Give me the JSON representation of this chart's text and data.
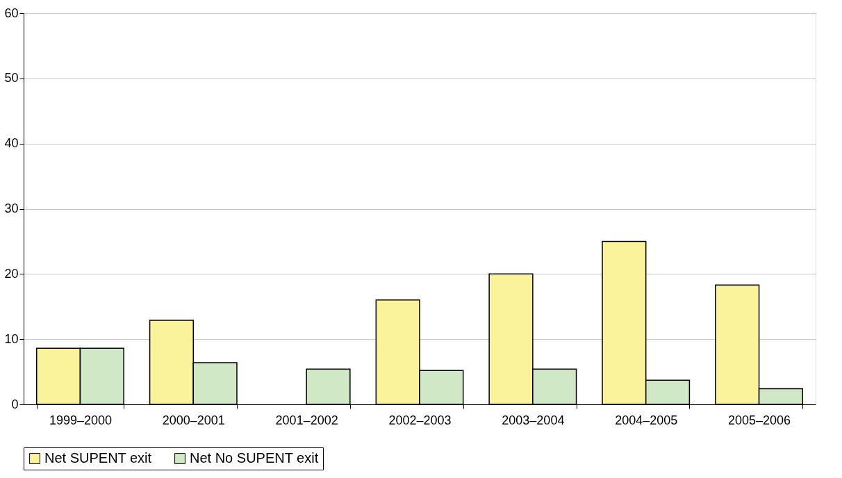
{
  "chart_data": {
    "type": "bar",
    "categories": [
      "1999–2000",
      "2000–2001",
      "2001–2002",
      "2002–2003",
      "2003–2004",
      "2004–2005",
      "2005–2006"
    ],
    "series": [
      {
        "name": "Net SUPENT exit",
        "color": "#faf39b",
        "values": [
          8.6,
          12.9,
          null,
          16.0,
          20.0,
          25.0,
          18.3
        ]
      },
      {
        "name": "Net No SUPENT exit",
        "color": "#d0e8c5",
        "values": [
          8.6,
          6.4,
          5.4,
          5.2,
          5.4,
          3.7,
          2.4
        ]
      }
    ],
    "ylim": [
      0,
      60
    ],
    "yticks": [
      0,
      10,
      20,
      30,
      40,
      50,
      60
    ],
    "grid": "y",
    "legend": "bottom"
  }
}
